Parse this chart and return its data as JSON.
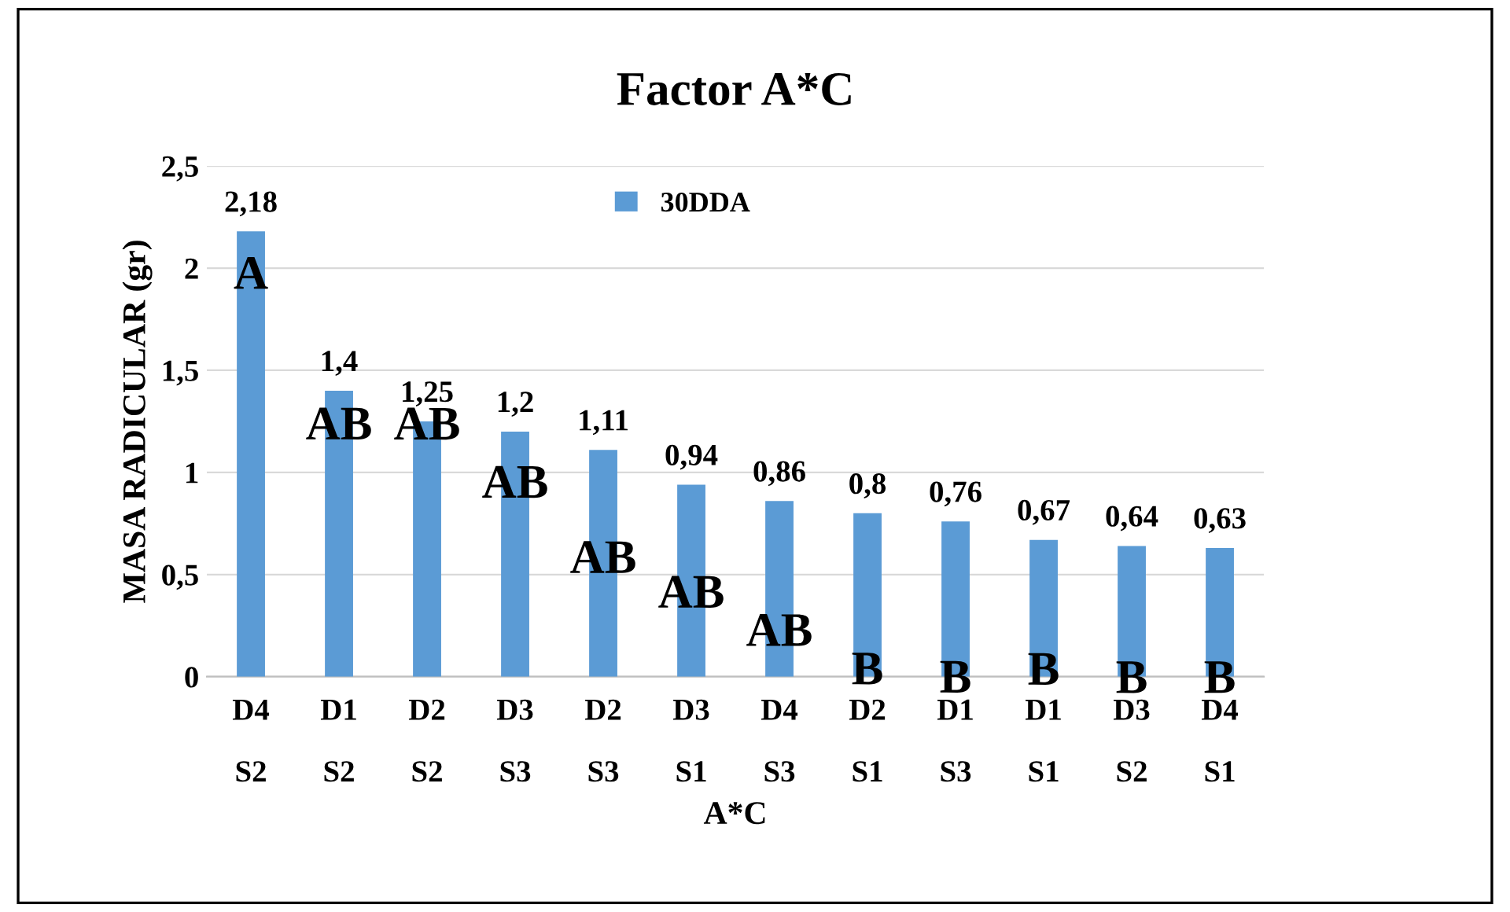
{
  "chart_data": {
    "type": "bar",
    "title": "Factor A*C",
    "xlabel": "A*C",
    "ylabel": "MASA RADICULAR (gr)",
    "categories": [
      "D4\nS2",
      "D1\nS2",
      "D2\nS2",
      "D3\nS3",
      "D2\nS3",
      "D3\nS1",
      "D4\nS3",
      "D2\nS1",
      "D1\nS3",
      "D1\nS1",
      "D3\nS2",
      "D4\nS1"
    ],
    "series": [
      {
        "name": "30DDA",
        "color": "#5b9bd5",
        "values": [
          2.18,
          1.4,
          1.25,
          1.2,
          1.11,
          0.94,
          0.86,
          0.8,
          0.76,
          0.67,
          0.64,
          0.63
        ],
        "value_labels": [
          "2,18",
          "1,4",
          "1,25",
          "1,2",
          "1,11",
          "0,94",
          "0,86",
          "0,8",
          "0,76",
          "0,67",
          "0,64",
          "0,63"
        ]
      }
    ],
    "ylim": [
      0,
      2.5
    ],
    "yticks": [
      0,
      {
        "value": 0.5,
        "label": "0,5"
      },
      1,
      {
        "value": 1.5,
        "label": "1,5"
      },
      2,
      {
        "value": 2.5,
        "label": "2,5"
      }
    ],
    "grid": "y",
    "legend": "top",
    "annotations": [
      "A",
      "AB",
      "AB",
      "AB",
      "AB",
      "AB",
      "AB",
      "B",
      "B",
      "B",
      "B",
      "B"
    ]
  }
}
